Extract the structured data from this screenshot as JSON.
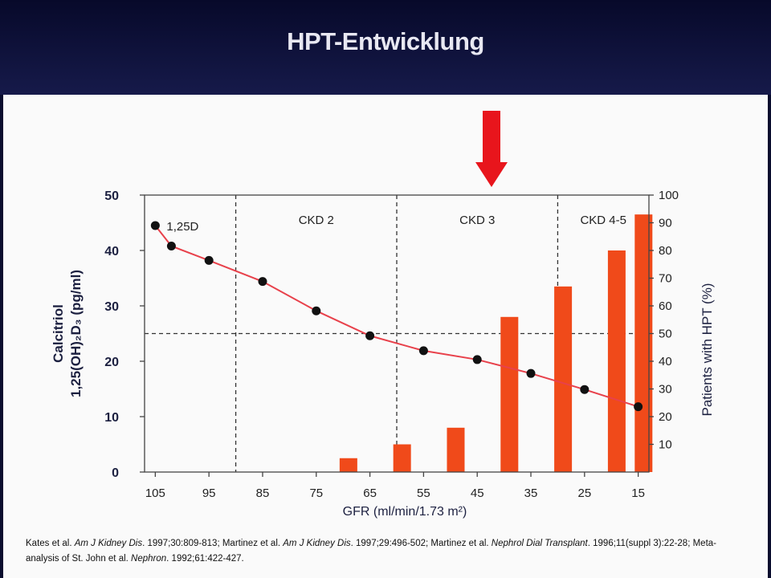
{
  "slide": {
    "title": "HPT-Entwicklung",
    "arrow_color": "#e8151c"
  },
  "chart_data": {
    "type": "bar+line",
    "x_axis": {
      "label": "GFR (ml/min/1.73 m²)",
      "ticks": [
        105,
        95,
        85,
        75,
        65,
        55,
        45,
        35,
        25,
        15
      ],
      "range": [
        107,
        13
      ],
      "reversed": true
    },
    "y_left": {
      "label_line1": "Calcitriol",
      "label_line2": "1,25(OH)₂D₃ (pg/ml)",
      "ticks": [
        0,
        10,
        20,
        30,
        40,
        50
      ],
      "range": [
        0,
        50
      ]
    },
    "y_right": {
      "label": "Patients with HPT (%)",
      "ticks": [
        10,
        20,
        30,
        40,
        50,
        60,
        70,
        80,
        90,
        100
      ],
      "range": [
        0,
        100
      ]
    },
    "regions": [
      {
        "label": "CKD 2",
        "from": 90,
        "to": 60
      },
      {
        "label": "CKD 3",
        "from": 60,
        "to": 30
      },
      {
        "label": "CKD 4-5",
        "from": 30,
        "to": 13
      }
    ],
    "region_dividers": [
      90,
      60,
      30
    ],
    "reference_line_right_axis": 50,
    "line_series": {
      "name": "1,25D",
      "color": "#e8414b",
      "x": [
        105,
        102,
        95,
        85,
        75,
        65,
        55,
        45,
        35,
        25,
        15
      ],
      "y": [
        44.5,
        40.8,
        38.2,
        34.4,
        29.1,
        24.6,
        21.9,
        20.3,
        17.8,
        14.9,
        11.8
      ]
    },
    "bar_series": {
      "color": "#f04a1a",
      "x": [
        69,
        59,
        49,
        39,
        29,
        19,
        14
      ],
      "y": [
        5,
        10,
        16,
        56,
        67,
        80,
        93
      ]
    }
  },
  "citation": {
    "p1": "Kates et al. ",
    "p2": "Am J Kidney Dis",
    "p3": ". 1997;30:809-813; Martinez et al. ",
    "p4": "Am J Kidney Dis",
    "p5": ". 1997;29:496-502; Martinez et al. ",
    "p6": "Nephrol Dial Transplant",
    "p7": ". 1996;11(suppl 3):22-28; Meta-analysis of St. John et al. ",
    "p8": "Nephron",
    "p9": ". 1992;61:422-427."
  }
}
